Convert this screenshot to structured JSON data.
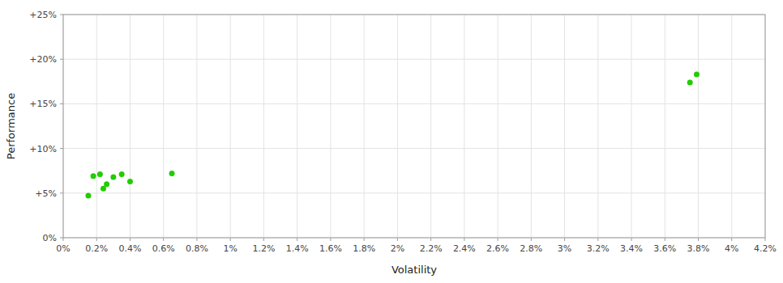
{
  "chart_data": {
    "type": "scatter",
    "xlabel": "Volatility",
    "ylabel": "Performance",
    "x": [
      0.0015,
      0.0018,
      0.0022,
      0.0024,
      0.0026,
      0.003,
      0.0035,
      0.004,
      0.0065,
      0.0379,
      0.0375
    ],
    "values": [
      0.047,
      0.069,
      0.071,
      0.055,
      0.06,
      0.068,
      0.071,
      0.063,
      0.072,
      0.183,
      0.174
    ],
    "color": "#22cc00",
    "xlim": [
      0,
      0.042
    ],
    "ylim": [
      0,
      0.25
    ],
    "xticks": [
      {
        "value": 0,
        "label": "0%"
      },
      {
        "value": 0.002,
        "label": "0.2%"
      },
      {
        "value": 0.004,
        "label": "0.4%"
      },
      {
        "value": 0.006,
        "label": "0.6%"
      },
      {
        "value": 0.008,
        "label": "0.8%"
      },
      {
        "value": 0.01,
        "label": "1%"
      },
      {
        "value": 0.012,
        "label": "1.2%"
      },
      {
        "value": 0.014,
        "label": "1.4%"
      },
      {
        "value": 0.016,
        "label": "1.6%"
      },
      {
        "value": 0.018,
        "label": "1.8%"
      },
      {
        "value": 0.02,
        "label": "2%"
      },
      {
        "value": 0.022,
        "label": "2.2%"
      },
      {
        "value": 0.024,
        "label": "2.4%"
      },
      {
        "value": 0.026,
        "label": "2.6%"
      },
      {
        "value": 0.028,
        "label": "2.8%"
      },
      {
        "value": 0.03,
        "label": "3%"
      },
      {
        "value": 0.032,
        "label": "3.2%"
      },
      {
        "value": 0.034,
        "label": "3.4%"
      },
      {
        "value": 0.036,
        "label": "3.6%"
      },
      {
        "value": 0.038,
        "label": "3.8%"
      },
      {
        "value": 0.04,
        "label": "4%"
      },
      {
        "value": 0.042,
        "label": "4.2%"
      }
    ],
    "yticks": [
      {
        "value": 0,
        "label": "0%"
      },
      {
        "value": 0.05,
        "label": "+5%"
      },
      {
        "value": 0.1,
        "label": "+10%"
      },
      {
        "value": 0.15,
        "label": "+15%"
      },
      {
        "value": 0.2,
        "label": "+20%"
      },
      {
        "value": 0.25,
        "label": "+25%"
      }
    ],
    "grid": true
  }
}
